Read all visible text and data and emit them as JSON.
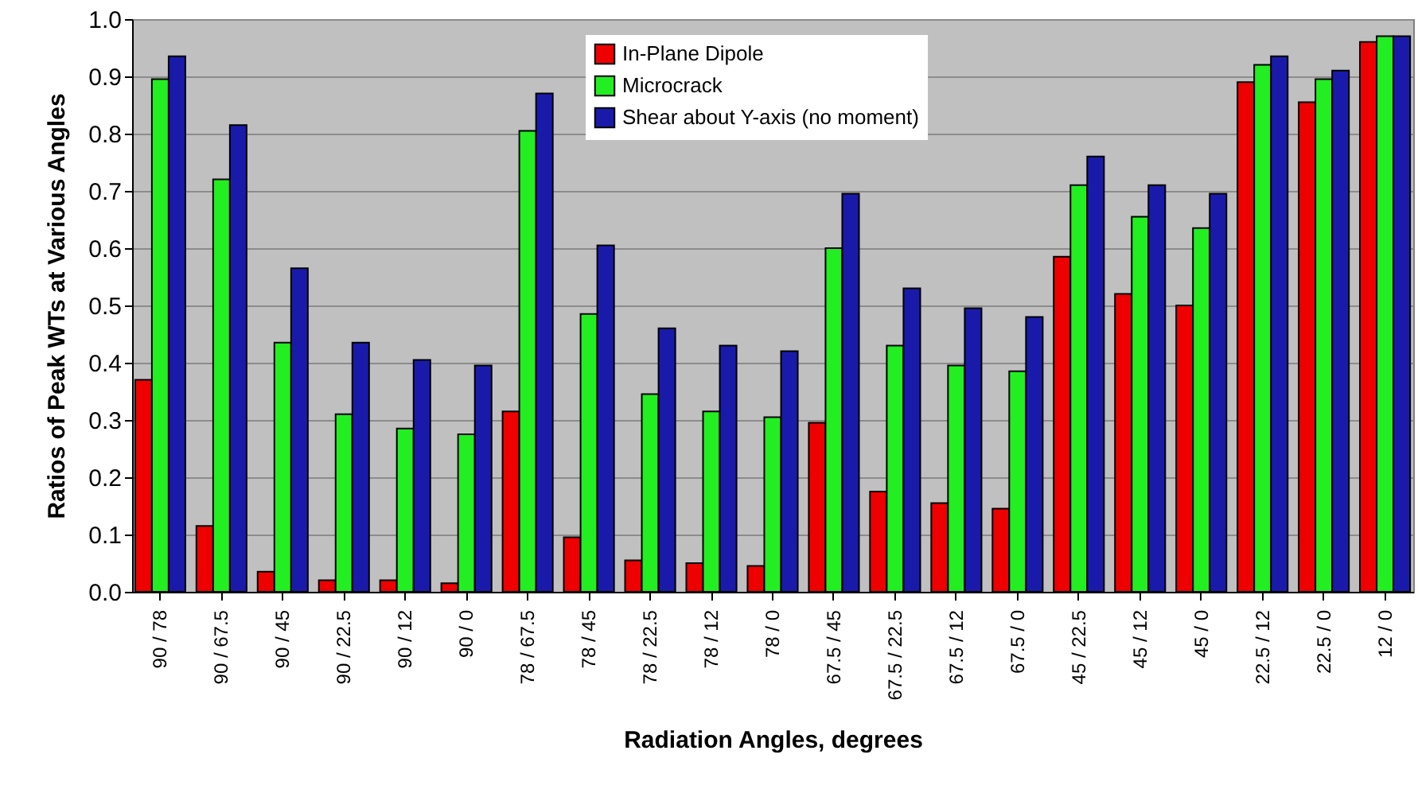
{
  "chart_data": {
    "type": "bar",
    "xlabel": "Radiation Angles, degrees",
    "ylabel": "Ratios of Peak WTs at Various Angles",
    "categories": [
      "90 / 78",
      "90 / 67.5",
      "90 / 45",
      "90 / 22.5",
      "90 / 12",
      "90 / 0",
      "78 / 67.5",
      "78 / 45",
      "78 / 22.5",
      "78 / 12",
      "78 / 0",
      "67.5 / 45",
      "67.5 / 22.5",
      "67.5 / 12",
      "67.5 / 0",
      "45 / 22.5",
      "45 / 12",
      "45 / 0",
      "22.5 / 12",
      "22.5 / 0",
      "12 / 0"
    ],
    "series": [
      {
        "name": "In-Plane Dipole",
        "color": "#ee0000",
        "values": [
          0.37,
          0.115,
          0.035,
          0.02,
          0.02,
          0.015,
          0.315,
          0.095,
          0.055,
          0.05,
          0.045,
          0.295,
          0.175,
          0.155,
          0.145,
          0.585,
          0.52,
          0.5,
          0.89,
          0.855,
          0.96
        ]
      },
      {
        "name": "Microcrack",
        "color": "#22ee22",
        "values": [
          0.895,
          0.72,
          0.435,
          0.31,
          0.285,
          0.275,
          0.805,
          0.485,
          0.345,
          0.315,
          0.305,
          0.6,
          0.43,
          0.395,
          0.385,
          0.71,
          0.655,
          0.635,
          0.92,
          0.895,
          0.97
        ]
      },
      {
        "name": "Shear about Y-axis (no moment)",
        "color": "#1a1aaa",
        "values": [
          0.935,
          0.815,
          0.565,
          0.435,
          0.405,
          0.395,
          0.87,
          0.605,
          0.46,
          0.43,
          0.42,
          0.695,
          0.53,
          0.495,
          0.48,
          0.76,
          0.71,
          0.695,
          0.935,
          0.91,
          0.97
        ]
      }
    ],
    "ylim": [
      0,
      1
    ],
    "yticks": [
      {
        "value": 0,
        "label": "0.0"
      },
      0.1,
      0.2,
      0.3,
      0.4,
      0.5,
      0.6,
      0.7,
      0.8,
      0.9,
      {
        "value": 1,
        "label": "1.0"
      }
    ],
    "grid": "y",
    "legend": "top"
  }
}
